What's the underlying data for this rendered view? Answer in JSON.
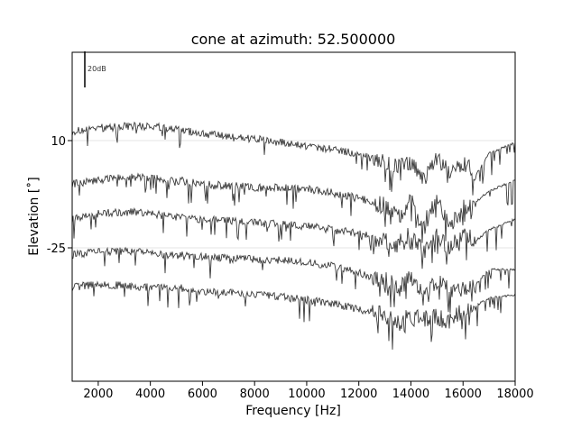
{
  "chart_data": {
    "type": "line",
    "title": "cone at azimuth: 52.500000",
    "xlabel": "Frequency [Hz]",
    "ylabel": "Elevation [˚]",
    "xlim": [
      1000,
      18000
    ],
    "x_ticks": [
      2000,
      4000,
      6000,
      8000,
      10000,
      12000,
      14000,
      16000,
      18000
    ],
    "x_tick_labels": [
      "2000",
      "4000",
      "6000",
      "8000",
      "10000",
      "12000",
      "14000",
      "16000",
      "18000"
    ],
    "y_tick_labels": [
      "10",
      "-25"
    ],
    "scale_bar_label": "20dB",
    "line_color": "#3a3a3a",
    "gridline_color": "#e6e6e6",
    "series": [
      {
        "offset": 0,
        "x": [
          1000,
          2000,
          3000,
          4000,
          5000,
          6000,
          7000,
          8000,
          9000,
          10000,
          11000,
          12000,
          13000,
          13500,
          14000,
          14500,
          15000,
          15500,
          16000,
          16500,
          17000,
          18000
        ],
        "y": [
          6,
          8,
          9,
          9,
          7,
          5,
          3,
          2,
          0,
          -2,
          -4,
          -6,
          -12,
          -14,
          -12,
          -20,
          -10,
          -16,
          -10,
          -18,
          -6,
          0
        ]
      },
      {
        "offset": 1,
        "x": [
          1000,
          2000,
          3000,
          4000,
          5000,
          6000,
          7000,
          8000,
          9000,
          10000,
          11000,
          12000,
          13000,
          13500,
          14000,
          14500,
          15000,
          15500,
          16000,
          16500,
          17000,
          18000
        ],
        "y": [
          -4,
          -2,
          0,
          -1,
          -2,
          -4,
          -5,
          -6,
          -6,
          -7,
          -9,
          -12,
          -16,
          -22,
          -14,
          -26,
          -12,
          -28,
          -18,
          -14,
          -8,
          -2
        ]
      },
      {
        "offset": 2,
        "x": [
          1000,
          2000,
          3000,
          4000,
          5000,
          6000,
          7000,
          8000,
          9000,
          10000,
          11000,
          12000,
          13000,
          13500,
          14000,
          14500,
          15000,
          15500,
          16000,
          16500,
          17000,
          18000
        ],
        "y": [
          -4,
          -1,
          0,
          -1,
          -3,
          -4,
          -5,
          -6,
          -7,
          -8,
          -10,
          -12,
          -16,
          -18,
          -12,
          -22,
          -14,
          -20,
          -12,
          -16,
          -10,
          -4
        ]
      },
      {
        "offset": 3,
        "x": [
          1000,
          2000,
          3000,
          4000,
          5000,
          6000,
          7000,
          8000,
          9000,
          10000,
          11000,
          12000,
          13000,
          13500,
          14000,
          14500,
          15000,
          15500,
          16000,
          16500,
          17000,
          18000
        ],
        "y": [
          -4,
          -2,
          -2,
          -3,
          -4,
          -5,
          -6,
          -6,
          -7,
          -8,
          -10,
          -14,
          -18,
          -22,
          -16,
          -24,
          -18,
          -22,
          -24,
          -20,
          -12,
          -12
        ]
      },
      {
        "offset": 4,
        "x": [
          1000,
          2000,
          3000,
          4000,
          5000,
          6000,
          7000,
          8000,
          9000,
          10000,
          11000,
          12000,
          13000,
          13500,
          14000,
          14500,
          15000,
          15500,
          16000,
          16500,
          17000,
          18000
        ],
        "y": [
          -2,
          0,
          -1,
          -2,
          -2,
          -4,
          -5,
          -6,
          -7,
          -9,
          -11,
          -14,
          -18,
          -22,
          -18,
          -20,
          -18,
          -20,
          -14,
          -12,
          -8,
          -6
        ]
      }
    ]
  }
}
